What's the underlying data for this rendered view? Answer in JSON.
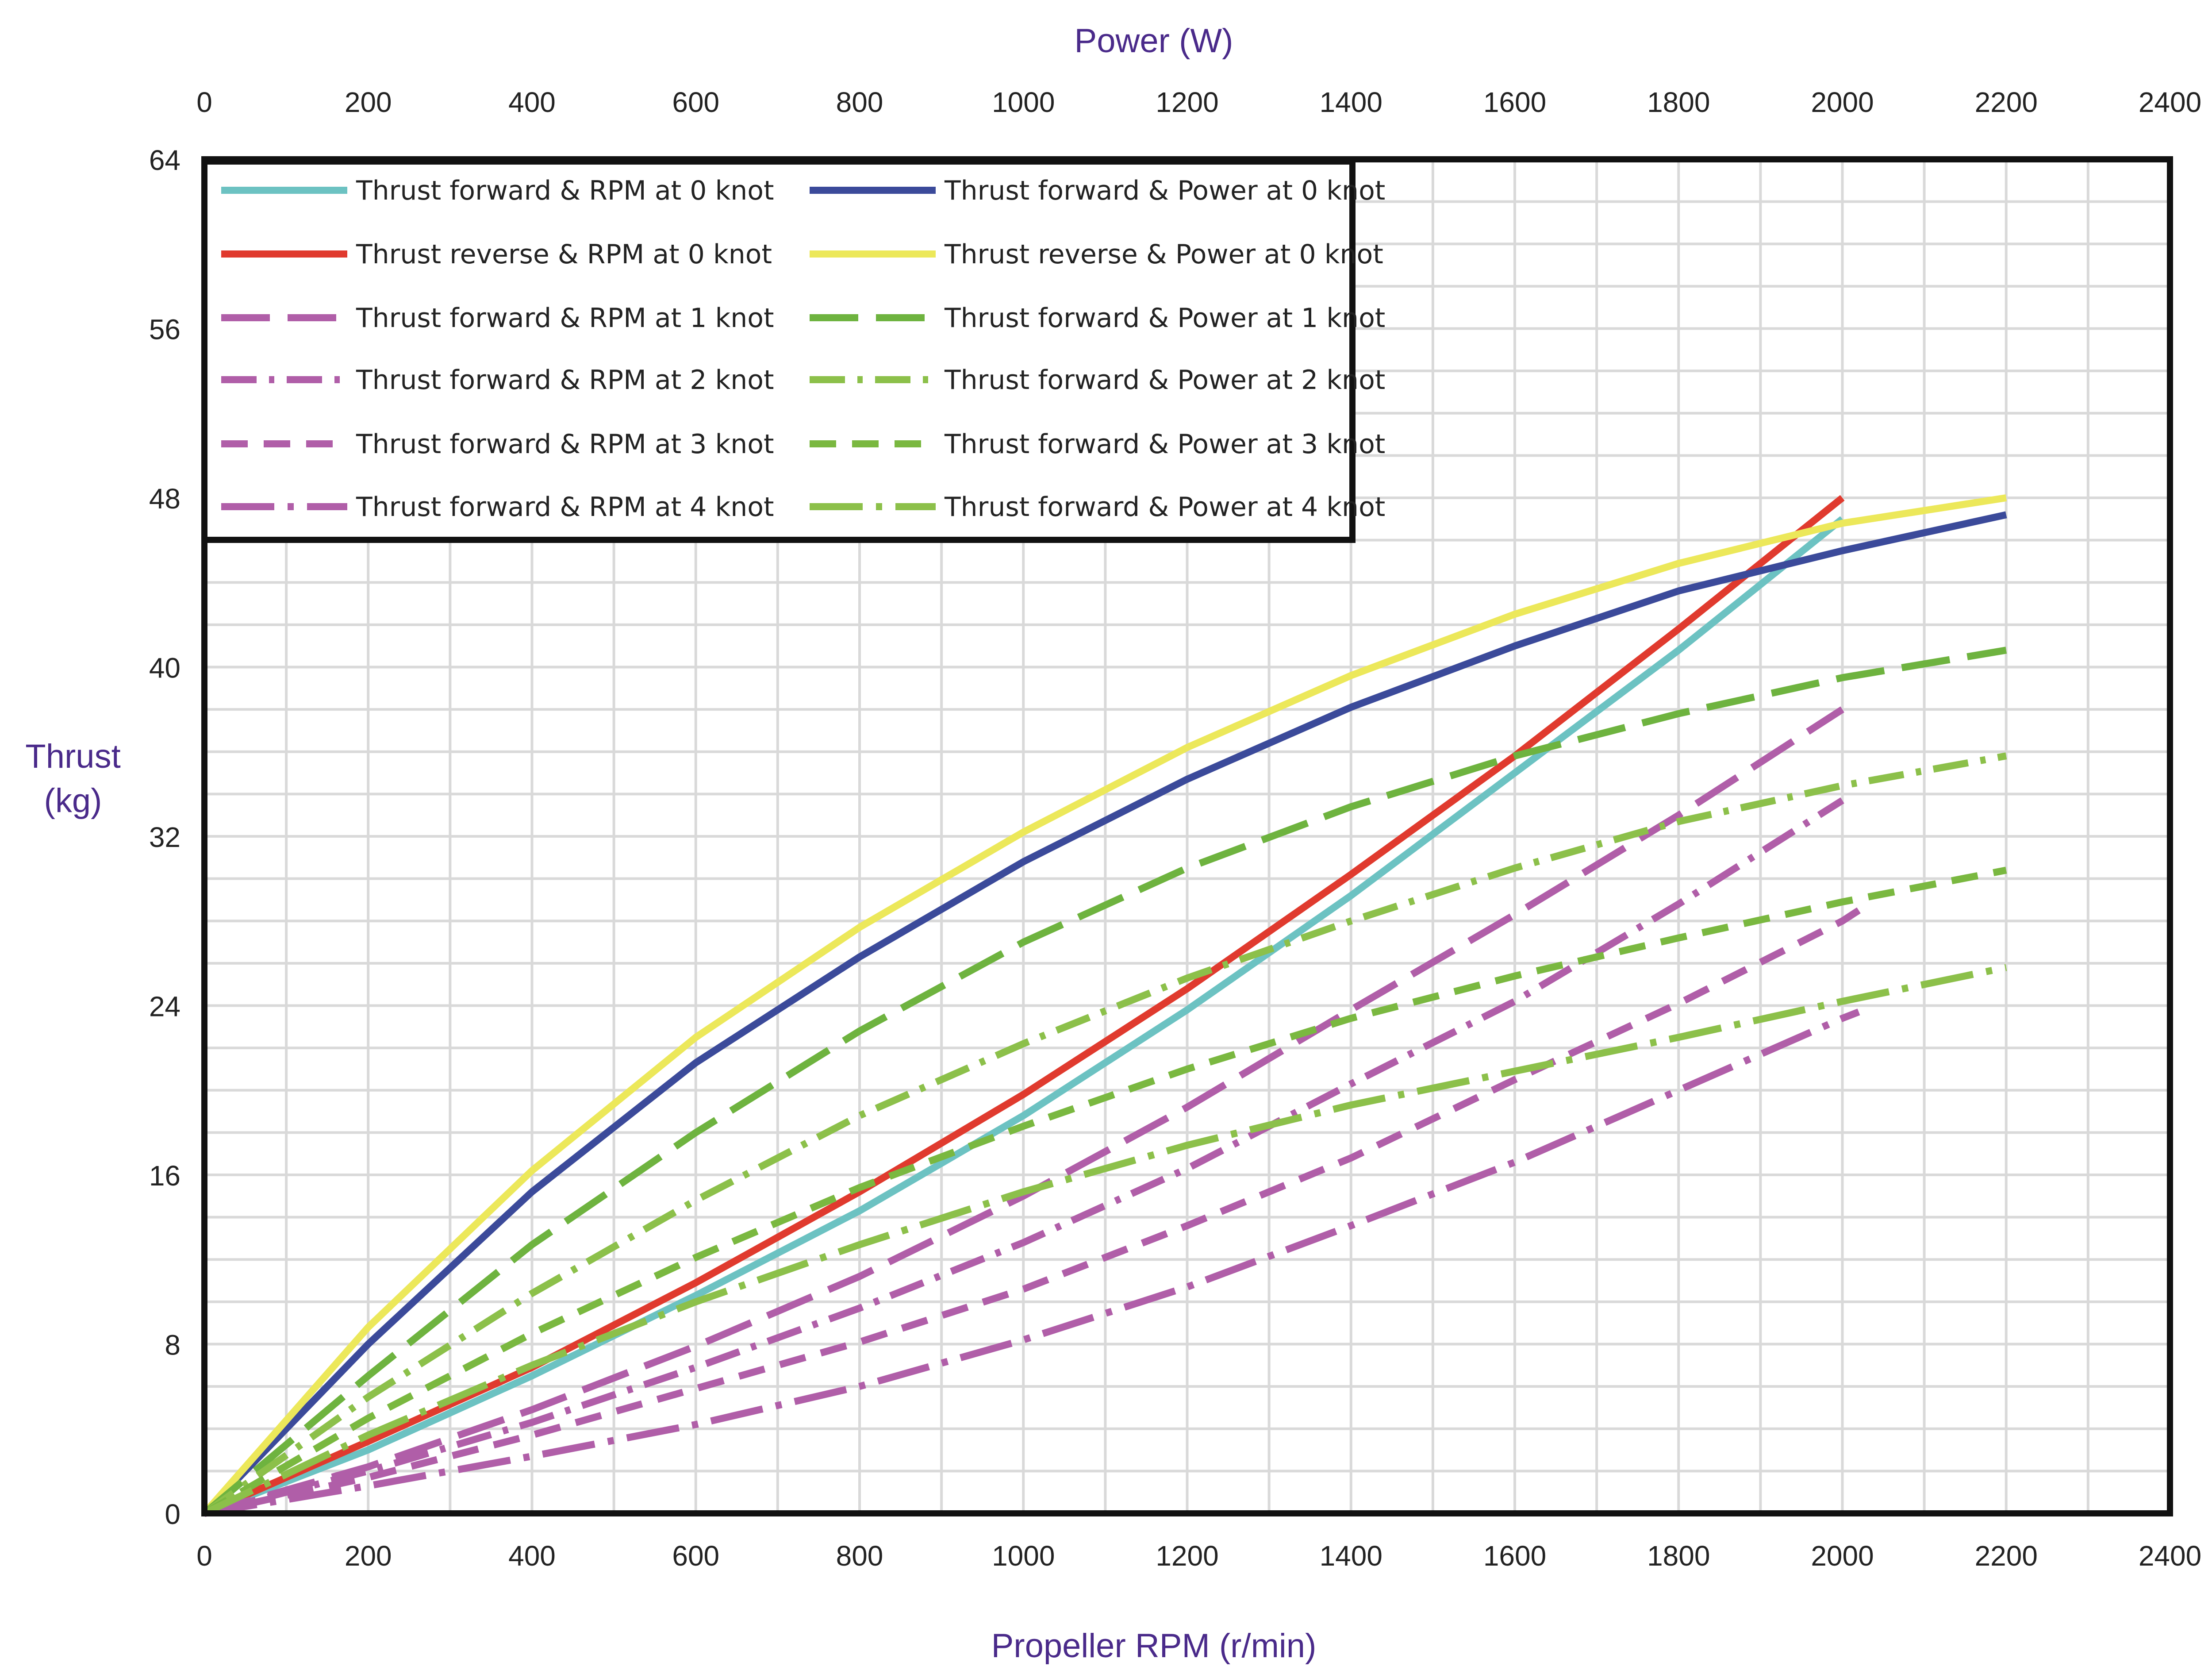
{
  "chart_data": {
    "type": "line",
    "title": "",
    "top_axis_title": "Power (W)",
    "x_axis_title": "Propeller RPM (r/min)",
    "y_axis_title_lines": [
      "Thrust",
      "(kg)"
    ],
    "x_range": [
      0,
      2400
    ],
    "y_range": [
      0,
      64
    ],
    "x_ticks": [
      "0",
      "200",
      "400",
      "600",
      "800",
      "1000",
      "1200",
      "1400",
      "1600",
      "1800",
      "2000",
      "2200",
      "2400"
    ],
    "top_ticks": [
      "0",
      "200",
      "400",
      "600",
      "800",
      "1000",
      "1200",
      "1400",
      "1600",
      "1800",
      "2000",
      "2200",
      "2400"
    ],
    "y_ticks": [
      "0",
      "8",
      "16",
      "24",
      "32",
      "40",
      "48",
      "56",
      "64"
    ],
    "grid": true,
    "legend_position": "top-left",
    "series": [
      {
        "name": "Thrust forward &  RPM at 0 knot",
        "color": "#6cc2c2",
        "dash": "solid",
        "x": [
          0,
          200,
          400,
          600,
          800,
          1000,
          1200,
          1400,
          1600,
          1800,
          2000
        ],
        "y": [
          0,
          3,
          6.5,
          10.3,
          14.3,
          18.8,
          23.8,
          29.2,
          35,
          40.8,
          47
        ]
      },
      {
        "name": "Thrust reverse  &  RPM at 0 knot",
        "color": "#e03a2e",
        "dash": "solid",
        "x": [
          0,
          200,
          400,
          600,
          800,
          1000,
          1200,
          1400,
          1600,
          1800,
          2000
        ],
        "y": [
          0,
          3.4,
          6.9,
          10.9,
          15.2,
          19.8,
          24.8,
          30.2,
          35.8,
          41.8,
          48
        ]
      },
      {
        "name": "Thrust forward &  RPM at 1 knot",
        "color": "#b05ea8",
        "dash": "long",
        "x": [
          0,
          200,
          400,
          600,
          800,
          1000,
          1200,
          1400,
          1600,
          1800,
          2000
        ],
        "y": [
          0,
          2.2,
          4.9,
          7.9,
          11.2,
          15,
          19.2,
          23.8,
          28.3,
          33,
          38
        ]
      },
      {
        "name": "Thrust forward &  RPM at 2 knot",
        "color": "#b05ea8",
        "dash": "dashdot",
        "x": [
          0,
          200,
          400,
          600,
          800,
          1000,
          1200,
          1400,
          1600,
          1800,
          2000
        ],
        "y": [
          0,
          2,
          4.3,
          6.9,
          9.7,
          12.8,
          16.3,
          20.3,
          24.2,
          28.8,
          33.7
        ]
      },
      {
        "name": "Thrust forward &  RPM at 3 knot",
        "color": "#b05ea8",
        "dash": "medium",
        "x": [
          0,
          200,
          400,
          600,
          800,
          1000,
          1200,
          1400,
          1600,
          1800,
          2000,
          2020
        ],
        "y": [
          0,
          1.7,
          3.7,
          5.9,
          8.1,
          10.6,
          13.6,
          16.8,
          20.5,
          24.1,
          28,
          28.5
        ]
      },
      {
        "name": "Thrust forward &  RPM at 4 knot",
        "color": "#b05ea8",
        "dash": "longdot",
        "x": [
          0,
          200,
          400,
          600,
          800,
          1000,
          1200,
          1400,
          1600,
          1800,
          2000,
          2020
        ],
        "y": [
          0,
          1.3,
          2.7,
          4.2,
          6,
          8.2,
          10.7,
          13.6,
          16.6,
          20,
          23.4,
          23.7
        ]
      },
      {
        "name": "Thrust forward & Power at 0 knot",
        "color": "#3b4a9a",
        "dash": "solid",
        "x": [
          0,
          200,
          400,
          600,
          800,
          1000,
          1200,
          1400,
          1600,
          1800,
          2000,
          2200
        ],
        "y": [
          0,
          8,
          15.2,
          21.3,
          26.3,
          30.8,
          34.7,
          38.1,
          41,
          43.6,
          45.5,
          47.2
        ]
      },
      {
        "name": "Thrust reverse & Power at 0 knot",
        "color": "#ece85a",
        "dash": "solid",
        "x": [
          0,
          200,
          400,
          600,
          800,
          1000,
          1200,
          1400,
          1600,
          1800,
          2000,
          2200
        ],
        "y": [
          0,
          8.8,
          16.2,
          22.5,
          27.7,
          32.2,
          36.2,
          39.6,
          42.5,
          44.9,
          46.8,
          48
        ]
      },
      {
        "name": "Thrust forward & Power at 1 knot",
        "color": "#6eb33f",
        "dash": "long",
        "x": [
          0,
          200,
          400,
          600,
          800,
          1000,
          1200,
          1400,
          1600,
          1800,
          2000,
          2200
        ],
        "y": [
          0,
          6.5,
          12.7,
          18,
          22.8,
          27,
          30.5,
          33.4,
          35.8,
          37.8,
          39.5,
          40.8
        ]
      },
      {
        "name": "Thrust forward & Power at 2 knot",
        "color": "#8cc04a",
        "dash": "dashdot",
        "x": [
          0,
          200,
          400,
          600,
          800,
          1000,
          1200,
          1400,
          1600,
          1800,
          2000,
          2200
        ],
        "y": [
          0,
          5.5,
          10.4,
          14.8,
          18.8,
          22.2,
          25.3,
          28,
          30.5,
          32.7,
          34.4,
          35.8
        ]
      },
      {
        "name": "Thrust forward & Power at 3 knot",
        "color": "#7ab840",
        "dash": "medium",
        "x": [
          0,
          200,
          400,
          600,
          800,
          1000,
          1200,
          1400,
          1600,
          1800,
          2000,
          2200
        ],
        "y": [
          0,
          4.5,
          8.5,
          12.1,
          15.4,
          18.3,
          21,
          23.4,
          25.4,
          27.2,
          28.9,
          30.4
        ]
      },
      {
        "name": "Thrust forward & Power at 4 knot",
        "color": "#8cc04a",
        "dash": "longdot",
        "x": [
          0,
          200,
          400,
          600,
          800,
          1000,
          1200,
          1400,
          1600,
          1800,
          2000,
          2200
        ],
        "y": [
          0,
          3.7,
          7,
          10,
          12.7,
          15.2,
          17.4,
          19.3,
          20.9,
          22.5,
          24.2,
          25.8
        ]
      }
    ]
  }
}
